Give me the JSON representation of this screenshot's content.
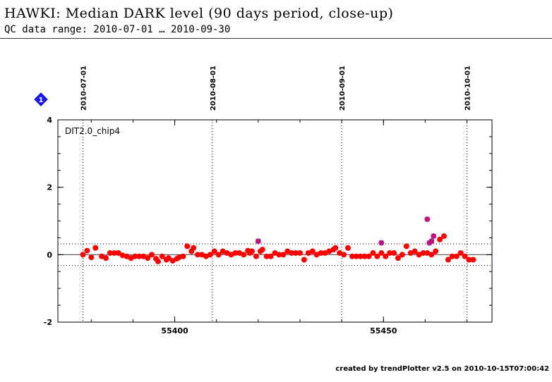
{
  "header": {
    "title": "HAWKI: Median DARK level (90 days period, close-up)",
    "subtitle": "QC data range: 2010-07-01 … 2010-09-30"
  },
  "footer": {
    "credit": "created by trendPlotter v2.5 on 2010-10-15T07:00:42"
  },
  "marker": {
    "label": "1",
    "color": "#1a1aff"
  },
  "chart_data": {
    "type": "scatter",
    "title": "",
    "panel_label": "DIT2.0_chip4",
    "xlabel": "",
    "ylabel": "",
    "xlim": [
      55372,
      55476
    ],
    "ylim": [
      -2,
      4
    ],
    "x_ticks": [
      55400,
      55450
    ],
    "y_ticks": [
      -2,
      0,
      2,
      4
    ],
    "date_markers": [
      {
        "label": "2010-07-01",
        "mjd": 55378
      },
      {
        "label": "2010-08-01",
        "mjd": 55409
      },
      {
        "label": "2010-09-01",
        "mjd": 55440
      },
      {
        "label": "2010-10-01",
        "mjd": 55470
      }
    ],
    "reference_lines": {
      "center": 0.0,
      "upper": 0.32,
      "lower": -0.32
    },
    "grid": false,
    "colors": {
      "normal": "#ff0000",
      "outlier": "#8a2be2",
      "reference": "#555555"
    },
    "series": [
      {
        "x": [
          55378.0,
          55379.0,
          55380.0,
          55381.0,
          55382.5,
          55383.5,
          55384.5,
          55385.5,
          55386.5,
          55387.5,
          55388.5,
          55389.5,
          55390.5,
          55391.5,
          55392.5,
          55393.5,
          55394.5,
          55395.5,
          55396.0,
          55397.0,
          55398.0,
          55398.5,
          55399.5,
          55400.5,
          55401.0,
          55402.0,
          55403.0,
          55404.0,
          55404.5,
          55405.5,
          55406.5,
          55407.5,
          55408.5,
          55409.5,
          55410.5,
          55411.5,
          55412.5,
          55413.5,
          55414.5,
          55415.5,
          55416.5,
          55417.5,
          55418.0,
          55418.5,
          55419.5,
          55420.5,
          55421.0,
          55422.0,
          55423.0,
          55424.0,
          55425.0,
          55426.0,
          55427.0,
          55428.0,
          55429.0,
          55430.0,
          55431.0,
          55432.0,
          55433.0,
          55434.0,
          55435.0,
          55436.0,
          55437.0,
          55438.0,
          55438.5,
          55439.5,
          55440.5,
          55441.5,
          55442.5,
          55443.5,
          55444.5,
          55445.5,
          55446.5,
          55447.5,
          55448.5,
          55449.5,
          55450.5,
          55451.5,
          55452.5,
          55453.5,
          55454.5,
          55455.5,
          55456.5,
          55457.5,
          55458.5,
          55459.5,
          55460.5,
          55461.5,
          55462.5,
          55463.5,
          55464.5,
          55465.5,
          55466.5,
          55467.5,
          55468.5,
          55469.5,
          55470.5,
          55471.5
        ],
        "y": [
          0.0,
          0.12,
          -0.08,
          0.2,
          -0.05,
          -0.1,
          0.05,
          0.05,
          0.05,
          -0.02,
          -0.05,
          -0.1,
          -0.05,
          -0.05,
          -0.05,
          -0.1,
          0.0,
          -0.12,
          -0.2,
          -0.05,
          -0.15,
          -0.1,
          -0.18,
          -0.12,
          -0.08,
          -0.05,
          0.25,
          0.1,
          0.2,
          0.0,
          0.0,
          -0.05,
          0.0,
          0.1,
          0.0,
          0.1,
          0.05,
          0.0,
          0.05,
          0.05,
          0.0,
          0.12,
          0.05,
          0.1,
          -0.05,
          0.1,
          0.15,
          -0.05,
          -0.05,
          0.05,
          0.0,
          0.0,
          0.1,
          0.05,
          0.05,
          0.05,
          -0.15,
          0.05,
          0.1,
          0.0,
          0.05,
          0.05,
          0.1,
          0.15,
          0.2,
          0.05,
          0.0,
          0.2,
          -0.05,
          -0.05,
          -0.05,
          -0.05,
          -0.05,
          0.05,
          -0.05,
          0.05,
          -0.05,
          0.05,
          0.05,
          -0.1,
          0.0,
          0.25,
          0.05,
          0.1,
          0.0,
          0.05,
          0.05,
          0.0,
          0.1,
          0.45,
          0.55,
          -0.15,
          -0.05,
          -0.05,
          0.05,
          -0.05,
          -0.15,
          -0.15
        ],
        "name": ""
      }
    ],
    "outliers": {
      "x": [
        55420.0,
        55449.5,
        55460.5,
        55461.0,
        55461.5,
        55462.0
      ],
      "y": [
        0.4,
        0.35,
        1.05,
        0.35,
        0.4,
        0.55
      ]
    }
  }
}
